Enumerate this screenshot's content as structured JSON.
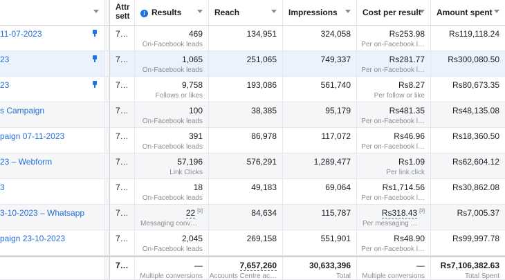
{
  "columns": {
    "attr": "Attr sett",
    "results": "Results",
    "reach": "Reach",
    "impressions": "Impressions",
    "cost": "Cost per result",
    "amount": "Amount spent"
  },
  "rows": [
    {
      "name": "11-07-2023",
      "pinned": true,
      "attr": "7…",
      "results": "469",
      "results_sub": "On-Facebook leads",
      "reach": "134,951",
      "impressions": "324,058",
      "cost": "Rs253.98",
      "cost_sub": "Per on-Facebook l…",
      "amount": "Rs119,118.24"
    },
    {
      "name": "23",
      "pinned": true,
      "attr": "7…",
      "results": "1,065",
      "results_sub": "On-Facebook leads",
      "reach": "251,065",
      "impressions": "749,337",
      "cost": "Rs281.77",
      "cost_sub": "Per on-Facebook l…",
      "amount": "Rs300,080.50"
    },
    {
      "name": "23",
      "pinned": true,
      "attr": "7…",
      "results": "9,758",
      "results_sub": "Follows or likes",
      "reach": "193,086",
      "impressions": "561,740",
      "cost": "Rs8.27",
      "cost_sub": "Per follow or like",
      "amount": "Rs80,673.35"
    },
    {
      "name": "s Campaign",
      "pinned": false,
      "attr": "7…",
      "results": "100",
      "results_sub": "On-Facebook leads",
      "reach": "38,385",
      "impressions": "95,179",
      "cost": "Rs481.35",
      "cost_sub": "Per on-Facebook l…",
      "amount": "Rs48,135.08"
    },
    {
      "name": "paign 07-11-2023",
      "pinned": false,
      "attr": "7…",
      "results": "391",
      "results_sub": "On-Facebook leads",
      "reach": "86,978",
      "impressions": "117,072",
      "cost": "Rs46.96",
      "cost_sub": "Per on-Facebook l…",
      "amount": "Rs18,360.50"
    },
    {
      "name": "23 – Webform",
      "pinned": false,
      "attr": "7…",
      "results": "57,196",
      "results_sub": "Link Clicks",
      "reach": "576,291",
      "impressions": "1,289,477",
      "cost": "Rs1.09",
      "cost_sub": "Per link click",
      "amount": "Rs62,604.12"
    },
    {
      "name": "3",
      "pinned": false,
      "attr": "7…",
      "results": "18",
      "results_sub": "On-Facebook leads",
      "reach": "49,183",
      "impressions": "69,064",
      "cost": "Rs1,714.56",
      "cost_sub": "Per on-Facebook l…",
      "amount": "Rs30,862.08"
    },
    {
      "name": "3-10-2023 – Whatsapp",
      "pinned": false,
      "attr": "7…",
      "results": "22",
      "results_sup": "[2]",
      "results_sub": "Messaging conv…",
      "reach": "84,634",
      "impressions": "115,787",
      "cost": "Rs318.43",
      "cost_sup": "[2]",
      "cost_sub": "Per messaging …",
      "amount": "Rs7,005.37"
    },
    {
      "name": "paign 23-10-2023",
      "pinned": false,
      "attr": "7…",
      "results": "2,045",
      "results_sub": "On-Facebook leads",
      "reach": "269,158",
      "impressions": "551,901",
      "cost": "Rs48.90",
      "cost_sub": "Per on-Facebook l…",
      "amount": "Rs99,997.78"
    }
  ],
  "totals": {
    "attr": "7…",
    "results": "—",
    "results_sub": "Multiple conversions",
    "reach": "7,657,260",
    "reach_sub": "Accounts Centre ac…",
    "impressions": "30,633,396",
    "impressions_sub": "Total",
    "cost": "—",
    "cost_sub": "Multiple conversions",
    "amount": "Rs7,106,382.63",
    "amount_sub": "Total Spent"
  },
  "colors": {
    "link": "#216fdb",
    "accent": "#1b74e4",
    "highlight": "#ebf2fd"
  }
}
